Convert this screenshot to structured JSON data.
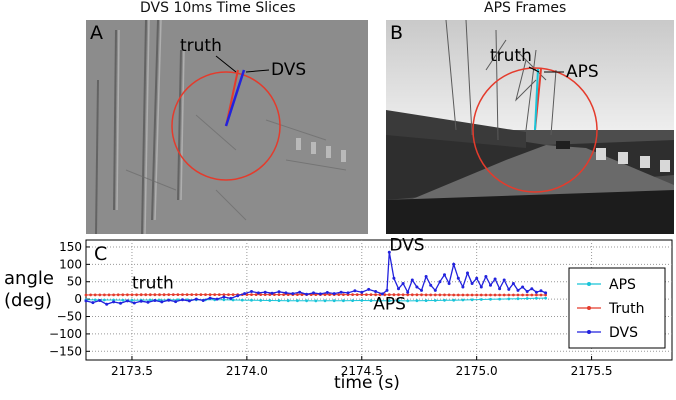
{
  "panels": {
    "a": {
      "title": "DVS 10ms Time Slices",
      "letter": "A",
      "truth_label": "truth",
      "estimate_label": "DVS"
    },
    "b": {
      "title": "APS Frames",
      "letter": "B",
      "truth_label": "truth",
      "estimate_label": "APS"
    }
  },
  "colors": {
    "circle": "#e43b2c",
    "truth_line": "#e43b2c",
    "dvs_line": "#2222dd",
    "aps_line": "#19c4d8",
    "dvs_panel_bg": "#8c8c8c",
    "aps_panel_bg": "#4d4d4d"
  },
  "chart_data": {
    "type": "line",
    "panel_letter": "C",
    "xlabel": "time (s)",
    "ylabel": "angle (deg)",
    "xlim": [
      2173.3,
      2175.85
    ],
    "ylim": [
      -175,
      170
    ],
    "x_ticks": [
      2173.5,
      2174.0,
      2174.5,
      2175.0,
      2175.5
    ],
    "x_tick_labels": [
      "2173.5",
      "2174.0",
      "2174.5",
      "2175.0",
      "2175.5"
    ],
    "y_ticks": [
      150,
      100,
      50,
      0,
      -50,
      -100,
      -150
    ],
    "y_tick_labels": [
      "150",
      "100",
      "50",
      "0",
      "−50",
      "−100",
      "−150"
    ],
    "grid": true,
    "legend_position": "right",
    "annotations": [
      {
        "text": "truth",
        "x": 2173.5,
        "y": 30
      },
      {
        "text": "DVS",
        "x": 2174.62,
        "y": 140
      },
      {
        "text": "APS",
        "x": 2174.55,
        "y": -30
      }
    ],
    "series": [
      {
        "name": "APS",
        "color": "#19c4d8",
        "marker": "dot",
        "step": 0.04,
        "values": [
          [
            2173.3,
            -2
          ],
          [
            2173.5,
            -3
          ],
          [
            2173.7,
            -2
          ],
          [
            2173.9,
            -2
          ],
          [
            2174.1,
            -4
          ],
          [
            2174.3,
            -5
          ],
          [
            2174.5,
            -4
          ],
          [
            2174.7,
            -5
          ],
          [
            2174.9,
            -3
          ],
          [
            2175.1,
            0
          ],
          [
            2175.3,
            3
          ]
        ]
      },
      {
        "name": "Truth",
        "color": "#e43b2c",
        "marker": "dot",
        "step": 0.02,
        "values": [
          [
            2173.3,
            12
          ],
          [
            2173.7,
            13
          ],
          [
            2174.1,
            13
          ],
          [
            2174.5,
            13
          ],
          [
            2174.9,
            12
          ],
          [
            2175.3,
            12
          ]
        ]
      },
      {
        "name": "DVS",
        "color": "#2222dd",
        "marker": "dot",
        "step": 0,
        "values": [
          [
            2173.3,
            -5
          ],
          [
            2173.33,
            -10
          ],
          [
            2173.36,
            -4
          ],
          [
            2173.39,
            -15
          ],
          [
            2173.42,
            -8
          ],
          [
            2173.45,
            -12
          ],
          [
            2173.48,
            -5
          ],
          [
            2173.51,
            -11
          ],
          [
            2173.54,
            -6
          ],
          [
            2173.57,
            -9
          ],
          [
            2173.6,
            -4
          ],
          [
            2173.63,
            -8
          ],
          [
            2173.66,
            -3
          ],
          [
            2173.69,
            -7
          ],
          [
            2173.72,
            -2
          ],
          [
            2173.75,
            -5
          ],
          [
            2173.78,
            0
          ],
          [
            2173.81,
            -4
          ],
          [
            2173.84,
            3
          ],
          [
            2173.87,
            0
          ],
          [
            2173.9,
            6
          ],
          [
            2173.93,
            2
          ],
          [
            2173.96,
            10
          ],
          [
            2173.99,
            16
          ],
          [
            2174.02,
            22
          ],
          [
            2174.05,
            18
          ],
          [
            2174.08,
            20
          ],
          [
            2174.11,
            17
          ],
          [
            2174.14,
            21
          ],
          [
            2174.17,
            18
          ],
          [
            2174.2,
            16
          ],
          [
            2174.23,
            20
          ],
          [
            2174.26,
            14
          ],
          [
            2174.29,
            18
          ],
          [
            2174.32,
            15
          ],
          [
            2174.35,
            19
          ],
          [
            2174.38,
            16
          ],
          [
            2174.41,
            20
          ],
          [
            2174.44,
            18
          ],
          [
            2174.47,
            24
          ],
          [
            2174.5,
            20
          ],
          [
            2174.53,
            28
          ],
          [
            2174.56,
            22
          ],
          [
            2174.59,
            15
          ],
          [
            2174.61,
            25
          ],
          [
            2174.62,
            135
          ],
          [
            2174.64,
            60
          ],
          [
            2174.66,
            30
          ],
          [
            2174.68,
            45
          ],
          [
            2174.7,
            20
          ],
          [
            2174.72,
            55
          ],
          [
            2174.74,
            35
          ],
          [
            2174.76,
            25
          ],
          [
            2174.78,
            65
          ],
          [
            2174.8,
            40
          ],
          [
            2174.82,
            25
          ],
          [
            2174.84,
            50
          ],
          [
            2174.86,
            70
          ],
          [
            2174.88,
            45
          ],
          [
            2174.9,
            100
          ],
          [
            2174.92,
            60
          ],
          [
            2174.94,
            35
          ],
          [
            2174.96,
            75
          ],
          [
            2174.98,
            45
          ],
          [
            2175.0,
            60
          ],
          [
            2175.02,
            35
          ],
          [
            2175.04,
            65
          ],
          [
            2175.06,
            40
          ],
          [
            2175.08,
            58
          ],
          [
            2175.1,
            30
          ],
          [
            2175.12,
            55
          ],
          [
            2175.14,
            28
          ],
          [
            2175.16,
            45
          ],
          [
            2175.18,
            25
          ],
          [
            2175.2,
            35
          ],
          [
            2175.22,
            22
          ],
          [
            2175.24,
            30
          ],
          [
            2175.26,
            20
          ],
          [
            2175.28,
            24
          ],
          [
            2175.3,
            18
          ]
        ]
      }
    ]
  }
}
